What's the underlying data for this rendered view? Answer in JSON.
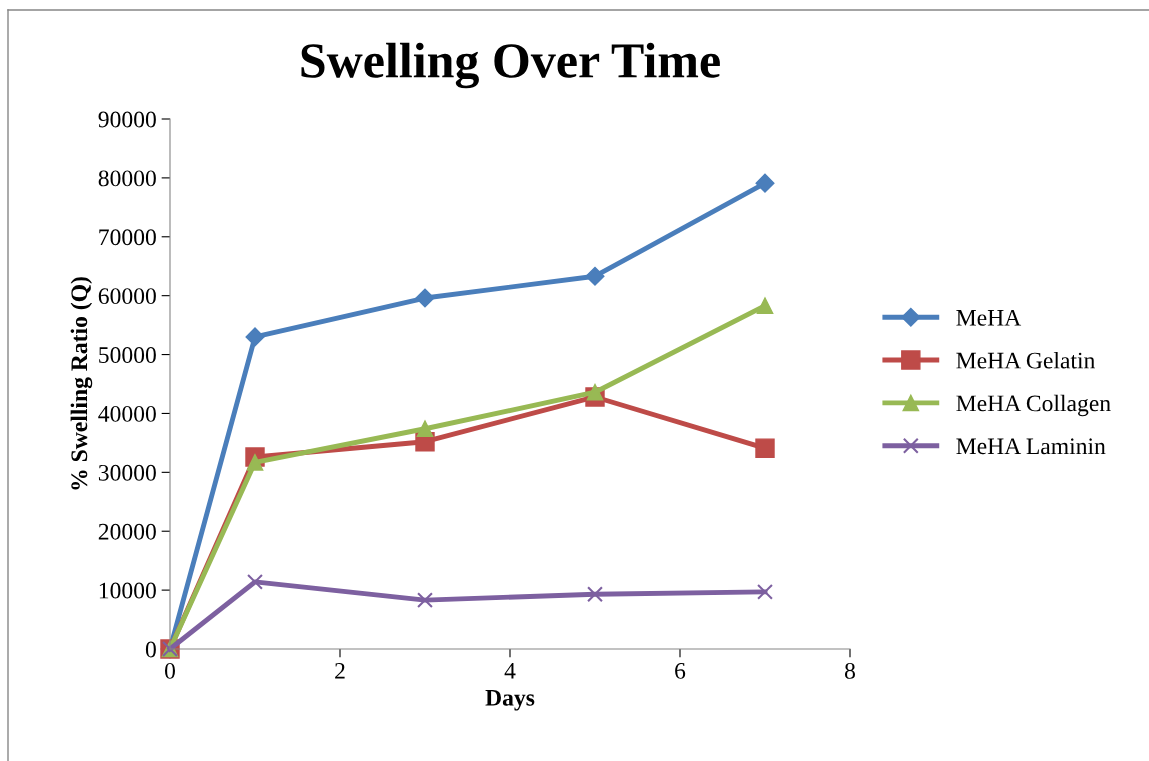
{
  "chart_data": {
    "type": "line",
    "title": "Swelling Over Time",
    "xlabel": "Days",
    "ylabel": "% Swelling Ratio (Q)",
    "x": [
      0,
      1,
      3,
      5,
      7
    ],
    "series": [
      {
        "name": "MeHA",
        "color": "#4a7ebb",
        "marker": "diamond",
        "values": [
          0,
          53000,
          59600,
          63300,
          79100
        ]
      },
      {
        "name": "MeHA Gelatin",
        "color": "#be4b48",
        "marker": "square",
        "values": [
          0,
          32600,
          35200,
          42800,
          34100
        ]
      },
      {
        "name": "MeHA Collagen",
        "color": "#98b954",
        "marker": "triangle",
        "values": [
          0,
          31700,
          37400,
          43600,
          58300
        ]
      },
      {
        "name": "MeHA Laminin",
        "color": "#7d60a0",
        "marker": "cross",
        "values": [
          0,
          11400,
          8300,
          9300,
          9700
        ]
      }
    ],
    "xlim": [
      0,
      8
    ],
    "xticks": [
      0,
      2,
      4,
      6,
      8
    ],
    "ylim": [
      0,
      90000
    ],
    "yticks": [
      0,
      10000,
      20000,
      30000,
      40000,
      50000,
      60000,
      70000,
      80000,
      90000
    ],
    "grid": false,
    "legend": "right",
    "line_style": "solid"
  }
}
